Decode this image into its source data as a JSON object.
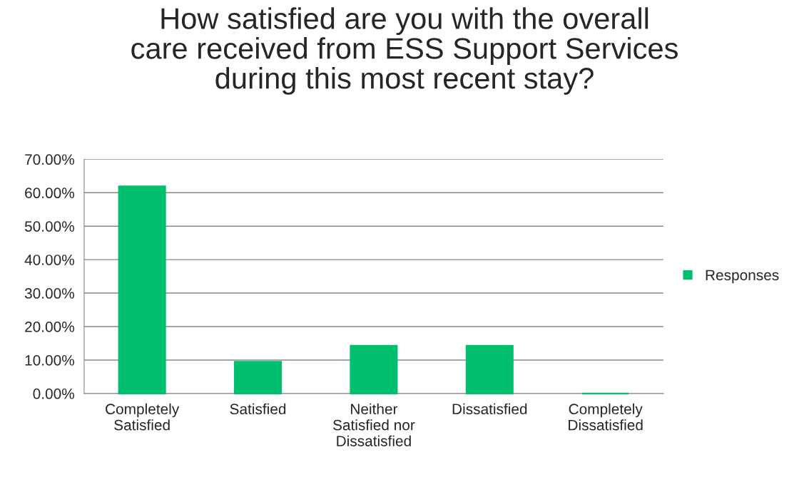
{
  "chart_data": {
    "type": "bar",
    "title": "How satisfied are you with the overall\ncare received from ESS Support Services\nduring this most recent stay?",
    "categories": [
      "Completely\nSatisfied",
      "Satisfied",
      "Neither\nSatisfied nor\nDissatisfied",
      "Dissatisfied",
      "Completely\nDissatisfied"
    ],
    "series": [
      {
        "name": "Responses",
        "color": "#00bf6f",
        "values": [
          61.9,
          9.5,
          14.3,
          14.3,
          0
        ]
      }
    ],
    "ylim": [
      0,
      70
    ],
    "yticks": [
      {
        "value": 0,
        "label": "0.00%"
      },
      {
        "value": 10,
        "label": "10.00%"
      },
      {
        "value": 20,
        "label": "20.00%"
      },
      {
        "value": 30,
        "label": "30.00%"
      },
      {
        "value": 40,
        "label": "40.00%"
      },
      {
        "value": 50,
        "label": "50.00%"
      },
      {
        "value": 60,
        "label": "60.00%"
      },
      {
        "value": 70,
        "label": "70.00%"
      }
    ],
    "grid": "y",
    "legend": "right"
  }
}
